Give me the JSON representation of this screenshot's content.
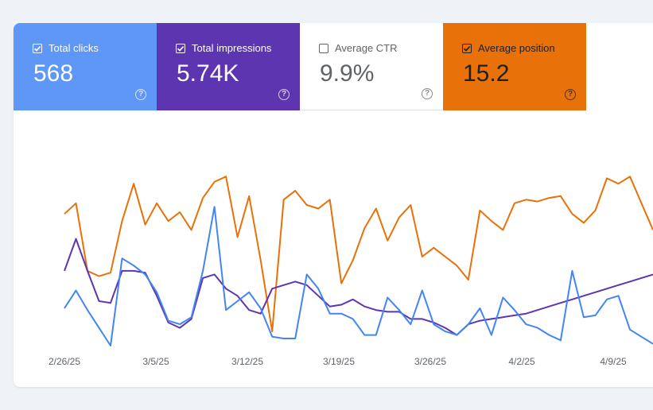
{
  "metrics": {
    "clicks": {
      "label": "Total clicks",
      "value": "568",
      "checked": true,
      "help_glyph": "?",
      "color": "#5e97f6"
    },
    "impressions": {
      "label": "Total impressions",
      "value": "5.74K",
      "checked": true,
      "help_glyph": "?",
      "color": "#5e35b1"
    },
    "ctr": {
      "label": "Average CTR",
      "value": "9.9%",
      "checked": false,
      "help_glyph": "?",
      "color": "#ffffff"
    },
    "position": {
      "label": "Average position",
      "value": "15.2",
      "checked": true,
      "help_glyph": "?",
      "color": "#e8710a"
    }
  },
  "chart_data": {
    "type": "line",
    "x_tick_labels": [
      "2/26/25",
      "3/5/25",
      "3/12/25",
      "3/19/25",
      "3/26/25",
      "4/2/25",
      "4/9/25"
    ],
    "y_axis_shown": false,
    "grid": false,
    "series": [
      {
        "color": "#e8710a",
        "values": [
          0.26,
          0.2,
          0.58,
          0.61,
          0.59,
          0.3,
          0.09,
          0.32,
          0.2,
          0.3,
          0.25,
          0.35,
          0.17,
          0.08,
          0.05,
          0.39,
          0.16,
          0.52,
          0.92,
          0.18,
          0.13,
          0.21,
          0.23,
          0.18,
          0.65,
          0.52,
          0.34,
          0.23,
          0.41,
          0.28,
          0.21,
          0.5,
          0.45,
          0.5,
          0.55,
          0.63,
          0.24,
          0.3,
          0.35,
          0.2,
          0.18,
          0.19,
          0.17,
          0.16,
          0.26,
          0.31,
          0.24,
          0.06,
          0.09,
          0.05,
          0.2,
          0.35
        ]
      },
      {
        "color": "#5e35b1",
        "values": [
          0.58,
          0.4,
          0.58,
          0.75,
          0.76,
          0.58,
          0.58,
          0.59,
          0.72,
          0.87,
          0.9,
          0.85,
          0.62,
          0.6,
          0.68,
          0.72,
          0.8,
          0.82,
          0.68,
          0.66,
          0.64,
          0.66,
          0.72,
          0.78,
          0.77,
          0.74,
          0.78,
          0.8,
          0.81,
          0.81,
          0.85,
          0.85,
          0.87,
          0.9,
          0.94,
          0.88,
          0.86,
          0.85,
          0.84,
          0.83,
          0.82,
          0.8,
          0.78,
          0.76,
          0.74,
          0.72,
          0.7,
          0.68,
          0.66,
          0.64,
          0.62,
          0.6
        ]
      },
      {
        "color": "#4285f4",
        "values": [
          0.79,
          0.69,
          0.8,
          0.9,
          1.0,
          0.51,
          0.55,
          0.6,
          0.7,
          0.86,
          0.88,
          0.84,
          0.58,
          0.22,
          0.8,
          0.75,
          0.7,
          0.79,
          0.95,
          0.96,
          0.96,
          0.6,
          0.68,
          0.82,
          0.82,
          0.85,
          0.94,
          0.94,
          0.73,
          0.8,
          0.88,
          0.69,
          0.88,
          0.92,
          0.94,
          0.88,
          0.79,
          0.94,
          0.73,
          0.8,
          0.88,
          0.9,
          0.94,
          0.97,
          0.58,
          0.84,
          0.83,
          0.74,
          0.72,
          0.91,
          0.95,
          0.99
        ]
      }
    ]
  }
}
